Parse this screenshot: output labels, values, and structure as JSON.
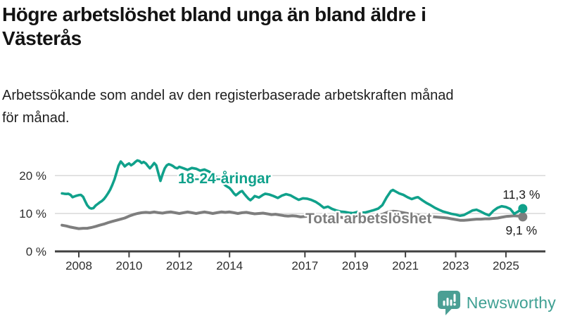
{
  "header": {
    "title_lines": [
      "Högre arbetslöshet bland unga än bland äldre i",
      "Västerås"
    ],
    "subtitle_lines": [
      "Arbetssökande som andel av den registerbaserade arbetskraften månad",
      "för månad."
    ]
  },
  "branding": {
    "name": "Newsworthy",
    "icon": "newsworthy-speech-bubble-bar-chart-icon",
    "icon_color": "#4b9f94",
    "text_color": "#3fa093"
  },
  "chart_data": {
    "type": "line",
    "title": "Högre arbetslöshet bland unga än bland äldre i Västerås",
    "subtitle": "Arbetssökande som andel av den registerbaserade arbetskraften månad för månad.",
    "unit": "%",
    "grid": "horizontal-only",
    "legend_position": "inline-labels",
    "xlabel": "",
    "ylabel": "",
    "ylim": [
      0,
      25
    ],
    "xlim": [
      2007.1,
      2026.1
    ],
    "y_ticks": [
      {
        "value": 0,
        "label": "0 %"
      },
      {
        "value": 10,
        "label": "10 %"
      },
      {
        "value": 20,
        "label": "20 %"
      }
    ],
    "x_tick_years": [
      2008,
      2010,
      2012,
      2014,
      2017,
      2019,
      2021,
      2023,
      2025
    ],
    "colors": {
      "grid": "#d9d9d9",
      "axis": "#404040",
      "tick_text": "#2e2e2e",
      "annotation_text": "#1c1c1c"
    },
    "series": [
      {
        "name": "Total arbetslöshet",
        "color": "#7e7e7e",
        "line_width": 4,
        "end_label": "9,1 %",
        "end_value": 9.1,
        "label_pos": {
          "year": 2017.02,
          "value": 7.4
        },
        "points": [
          [
            2007.33,
            6.9
          ],
          [
            2007.5,
            6.7
          ],
          [
            2007.67,
            6.4
          ],
          [
            2007.83,
            6.2
          ],
          [
            2008.0,
            6.0
          ],
          [
            2008.17,
            6.1
          ],
          [
            2008.33,
            6.1
          ],
          [
            2008.5,
            6.3
          ],
          [
            2008.67,
            6.6
          ],
          [
            2008.83,
            6.9
          ],
          [
            2009.0,
            7.2
          ],
          [
            2009.17,
            7.6
          ],
          [
            2009.33,
            7.9
          ],
          [
            2009.5,
            8.2
          ],
          [
            2009.67,
            8.5
          ],
          [
            2009.83,
            8.8
          ],
          [
            2010.0,
            9.3
          ],
          [
            2010.17,
            9.7
          ],
          [
            2010.33,
            10.0
          ],
          [
            2010.5,
            10.2
          ],
          [
            2010.67,
            10.3
          ],
          [
            2010.83,
            10.2
          ],
          [
            2011.0,
            10.4
          ],
          [
            2011.17,
            10.2
          ],
          [
            2011.33,
            10.1
          ],
          [
            2011.5,
            10.3
          ],
          [
            2011.67,
            10.4
          ],
          [
            2011.83,
            10.2
          ],
          [
            2012.0,
            10.0
          ],
          [
            2012.17,
            10.2
          ],
          [
            2012.33,
            10.4
          ],
          [
            2012.5,
            10.2
          ],
          [
            2012.67,
            10.0
          ],
          [
            2012.83,
            10.2
          ],
          [
            2013.0,
            10.4
          ],
          [
            2013.17,
            10.2
          ],
          [
            2013.33,
            10.0
          ],
          [
            2013.5,
            10.2
          ],
          [
            2013.67,
            10.4
          ],
          [
            2013.83,
            10.3
          ],
          [
            2014.0,
            10.4
          ],
          [
            2014.17,
            10.2
          ],
          [
            2014.33,
            10.0
          ],
          [
            2014.5,
            10.2
          ],
          [
            2014.67,
            10.3
          ],
          [
            2014.83,
            10.1
          ],
          [
            2015.0,
            9.9
          ],
          [
            2015.17,
            10.0
          ],
          [
            2015.33,
            10.1
          ],
          [
            2015.5,
            9.9
          ],
          [
            2015.67,
            9.7
          ],
          [
            2015.83,
            9.8
          ],
          [
            2016.0,
            9.6
          ],
          [
            2016.17,
            9.4
          ],
          [
            2016.33,
            9.3
          ],
          [
            2016.5,
            9.4
          ],
          [
            2016.67,
            9.3
          ],
          [
            2016.83,
            9.1
          ],
          [
            2017.0,
            9.2
          ],
          [
            2017.17,
            9.3
          ],
          [
            2017.33,
            9.1
          ],
          [
            2017.5,
            9.0
          ],
          [
            2017.67,
            9.1
          ],
          [
            2017.83,
            8.9
          ],
          [
            2018.0,
            8.8
          ],
          [
            2018.17,
            9.0
          ],
          [
            2018.33,
            9.1
          ],
          [
            2018.5,
            8.9
          ],
          [
            2018.67,
            8.8
          ],
          [
            2018.83,
            8.9
          ],
          [
            2019.0,
            9.0
          ],
          [
            2019.17,
            9.1
          ],
          [
            2019.33,
            9.0
          ],
          [
            2019.5,
            9.2
          ],
          [
            2019.67,
            9.3
          ],
          [
            2019.83,
            9.4
          ],
          [
            2020.0,
            9.6
          ],
          [
            2020.17,
            10.0
          ],
          [
            2020.33,
            10.4
          ],
          [
            2020.5,
            10.6
          ],
          [
            2020.67,
            10.5
          ],
          [
            2020.83,
            10.3
          ],
          [
            2021.0,
            10.1
          ],
          [
            2021.17,
            9.9
          ],
          [
            2021.33,
            9.7
          ],
          [
            2021.5,
            9.6
          ],
          [
            2021.67,
            9.4
          ],
          [
            2021.83,
            9.3
          ],
          [
            2022.0,
            9.2
          ],
          [
            2022.17,
            9.1
          ],
          [
            2022.33,
            9.0
          ],
          [
            2022.5,
            8.9
          ],
          [
            2022.67,
            8.8
          ],
          [
            2022.83,
            8.6
          ],
          [
            2023.0,
            8.4
          ],
          [
            2023.17,
            8.2
          ],
          [
            2023.33,
            8.2
          ],
          [
            2023.5,
            8.3
          ],
          [
            2023.67,
            8.4
          ],
          [
            2023.83,
            8.5
          ],
          [
            2024.0,
            8.5
          ],
          [
            2024.17,
            8.6
          ],
          [
            2024.33,
            8.6
          ],
          [
            2024.5,
            8.7
          ],
          [
            2024.67,
            8.8
          ],
          [
            2024.83,
            9.0
          ],
          [
            2025.0,
            9.2
          ],
          [
            2025.17,
            9.3
          ],
          [
            2025.33,
            9.4
          ],
          [
            2025.5,
            9.3
          ],
          [
            2025.67,
            9.1
          ]
        ]
      },
      {
        "name": "18-24-åringar",
        "color": "#10a18b",
        "line_width": 3.6,
        "end_label": "11,3 %",
        "end_value": 11.3,
        "label_pos": {
          "year": 2011.95,
          "value": 18.0
        },
        "points": [
          [
            2007.33,
            15.3
          ],
          [
            2007.42,
            15.2
          ],
          [
            2007.5,
            15.15
          ],
          [
            2007.58,
            15.2
          ],
          [
            2007.67,
            14.9
          ],
          [
            2007.75,
            14.3
          ],
          [
            2007.83,
            14.5
          ],
          [
            2007.92,
            14.7
          ],
          [
            2008.0,
            14.85
          ],
          [
            2008.08,
            14.9
          ],
          [
            2008.17,
            14.4
          ],
          [
            2008.25,
            13.3
          ],
          [
            2008.33,
            12.2
          ],
          [
            2008.42,
            11.5
          ],
          [
            2008.5,
            11.3
          ],
          [
            2008.58,
            11.4
          ],
          [
            2008.67,
            12.1
          ],
          [
            2008.75,
            12.5
          ],
          [
            2008.83,
            12.9
          ],
          [
            2008.92,
            13.3
          ],
          [
            2009.0,
            13.8
          ],
          [
            2009.08,
            14.5
          ],
          [
            2009.17,
            15.4
          ],
          [
            2009.25,
            16.3
          ],
          [
            2009.33,
            17.5
          ],
          [
            2009.42,
            19.0
          ],
          [
            2009.5,
            20.8
          ],
          [
            2009.58,
            22.6
          ],
          [
            2009.67,
            23.7
          ],
          [
            2009.75,
            23.1
          ],
          [
            2009.83,
            22.4
          ],
          [
            2009.92,
            22.9
          ],
          [
            2010.0,
            23.2
          ],
          [
            2010.08,
            22.7
          ],
          [
            2010.17,
            23.1
          ],
          [
            2010.25,
            23.6
          ],
          [
            2010.33,
            24.0
          ],
          [
            2010.42,
            23.8
          ],
          [
            2010.5,
            23.3
          ],
          [
            2010.58,
            23.6
          ],
          [
            2010.67,
            23.2
          ],
          [
            2010.75,
            22.5
          ],
          [
            2010.83,
            21.9
          ],
          [
            2010.92,
            22.6
          ],
          [
            2011.0,
            23.3
          ],
          [
            2011.08,
            22.7
          ],
          [
            2011.17,
            20.5
          ],
          [
            2011.25,
            18.6
          ],
          [
            2011.33,
            20.3
          ],
          [
            2011.42,
            21.9
          ],
          [
            2011.5,
            22.7
          ],
          [
            2011.58,
            23.0
          ],
          [
            2011.67,
            22.8
          ],
          [
            2011.75,
            22.5
          ],
          [
            2011.83,
            22.1
          ],
          [
            2011.92,
            21.9
          ],
          [
            2012.0,
            22.3
          ],
          [
            2012.17,
            21.9
          ],
          [
            2012.33,
            21.5
          ],
          [
            2012.5,
            22.0
          ],
          [
            2012.67,
            21.8
          ],
          [
            2012.83,
            21.3
          ],
          [
            2013.0,
            21.6
          ],
          [
            2013.17,
            21.1
          ],
          [
            2013.33,
            20.4
          ],
          [
            2013.5,
            19.4
          ],
          [
            2013.67,
            18.4
          ],
          [
            2013.83,
            17.4
          ],
          [
            2014.0,
            16.7
          ],
          [
            2014.08,
            16.1
          ],
          [
            2014.17,
            15.3
          ],
          [
            2014.25,
            14.8
          ],
          [
            2014.33,
            15.2
          ],
          [
            2014.42,
            15.7
          ],
          [
            2014.5,
            15.9
          ],
          [
            2014.58,
            15.2
          ],
          [
            2014.67,
            14.5
          ],
          [
            2014.75,
            13.9
          ],
          [
            2014.83,
            13.5
          ],
          [
            2014.92,
            14.0
          ],
          [
            2015.0,
            14.6
          ],
          [
            2015.17,
            14.2
          ],
          [
            2015.33,
            14.9
          ],
          [
            2015.42,
            15.2
          ],
          [
            2015.58,
            15.0
          ],
          [
            2015.75,
            14.6
          ],
          [
            2015.92,
            14.1
          ],
          [
            2016.08,
            14.7
          ],
          [
            2016.25,
            15.1
          ],
          [
            2016.42,
            14.8
          ],
          [
            2016.58,
            14.2
          ],
          [
            2016.75,
            13.6
          ],
          [
            2016.92,
            14.0
          ],
          [
            2017.08,
            13.9
          ],
          [
            2017.25,
            13.6
          ],
          [
            2017.42,
            13.1
          ],
          [
            2017.58,
            12.4
          ],
          [
            2017.75,
            11.5
          ],
          [
            2017.92,
            11.8
          ],
          [
            2018.08,
            11.2
          ],
          [
            2018.25,
            10.8
          ],
          [
            2018.42,
            10.5
          ],
          [
            2018.58,
            10.4
          ],
          [
            2018.75,
            10.2
          ],
          [
            2018.92,
            10.1
          ],
          [
            2019.08,
            10.4
          ],
          [
            2019.25,
            10.2
          ],
          [
            2019.42,
            10.3
          ],
          [
            2019.58,
            10.6
          ],
          [
            2019.75,
            10.9
          ],
          [
            2019.92,
            11.3
          ],
          [
            2020.08,
            12.2
          ],
          [
            2020.25,
            14.2
          ],
          [
            2020.42,
            15.9
          ],
          [
            2020.5,
            16.2
          ],
          [
            2020.58,
            15.9
          ],
          [
            2020.75,
            15.3
          ],
          [
            2020.92,
            14.9
          ],
          [
            2021.08,
            14.3
          ],
          [
            2021.25,
            13.8
          ],
          [
            2021.42,
            14.2
          ],
          [
            2021.5,
            14.3
          ],
          [
            2021.67,
            13.5
          ],
          [
            2021.83,
            12.8
          ],
          [
            2022.0,
            12.2
          ],
          [
            2022.17,
            11.5
          ],
          [
            2022.33,
            11.0
          ],
          [
            2022.5,
            10.5
          ],
          [
            2022.67,
            10.2
          ],
          [
            2022.83,
            9.9
          ],
          [
            2023.0,
            9.7
          ],
          [
            2023.17,
            9.4
          ],
          [
            2023.33,
            9.6
          ],
          [
            2023.5,
            10.2
          ],
          [
            2023.67,
            10.8
          ],
          [
            2023.83,
            11.0
          ],
          [
            2024.0,
            10.5
          ],
          [
            2024.17,
            9.9
          ],
          [
            2024.33,
            9.5
          ],
          [
            2024.5,
            10.7
          ],
          [
            2024.67,
            11.5
          ],
          [
            2024.83,
            11.9
          ],
          [
            2025.0,
            11.7
          ],
          [
            2025.17,
            11.2
          ],
          [
            2025.33,
            9.9
          ],
          [
            2025.5,
            10.6
          ],
          [
            2025.67,
            11.3
          ]
        ]
      }
    ]
  }
}
